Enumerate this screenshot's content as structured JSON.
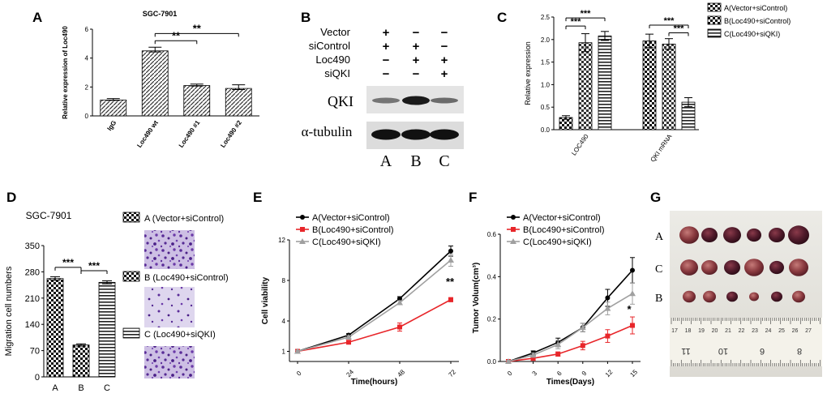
{
  "panel_labels": [
    "A",
    "B",
    "C",
    "D",
    "E",
    "F",
    "G"
  ],
  "chart_data": [
    {
      "panel": "A",
      "type": "bar",
      "title": "SGC-7901",
      "ylabel": "Relative expression of Loc490",
      "categories": [
        "IgG",
        "Loc490 wt",
        "Loc490 #1",
        "Loc490 #2"
      ],
      "values": [
        1.1,
        4.5,
        2.1,
        1.9
      ],
      "errors": [
        0.1,
        0.25,
        0.1,
        0.25
      ],
      "ylim": [
        0,
        6
      ],
      "yticks": [
        "0",
        "2",
        "4",
        "6"
      ],
      "significance": [
        "**",
        "**"
      ]
    },
    {
      "panel": "C",
      "type": "bar",
      "ylabel": "Relative expression",
      "categories": [
        "LOC490",
        "QKI mRNA"
      ],
      "series": [
        {
          "name": "A(Vector+siControl)",
          "values": [
            0.27,
            1.97
          ],
          "errors": [
            0.04,
            0.15
          ]
        },
        {
          "name": "B(Loc490+siControl)",
          "values": [
            1.93,
            1.9
          ],
          "errors": [
            0.2,
            0.12
          ]
        },
        {
          "name": "C(Loc490+siQKI)",
          "values": [
            2.08,
            0.61
          ],
          "errors": [
            0.1,
            0.1
          ]
        }
      ],
      "ylim": [
        0,
        2.5
      ],
      "yticks": [
        "0.0",
        "0.5",
        "1.0",
        "1.5",
        "2.0",
        "2.5"
      ],
      "significance": [
        "***",
        "***",
        "***",
        "***"
      ],
      "legend": "top-right"
    },
    {
      "panel": "D",
      "type": "bar",
      "title": "SGC-7901",
      "ylabel": "Migration cell numbers",
      "categories": [
        "A",
        "B",
        "C"
      ],
      "values": [
        262,
        85,
        252
      ],
      "errors": [
        5,
        3,
        4
      ],
      "ylim": [
        0,
        350
      ],
      "yticks": [
        "0",
        "70",
        "140",
        "210",
        "280",
        "350"
      ],
      "significance": [
        "***",
        "***"
      ],
      "legend": [
        "A (Vector+siControl)",
        "B (Loc490+siControl)",
        "C (Loc490+siQKI)"
      ]
    },
    {
      "panel": "E",
      "type": "line",
      "xlabel": "Time(hours)",
      "ylabel": "Cell viability",
      "x": [
        0,
        24,
        48,
        72
      ],
      "xticks": [
        "0",
        "24",
        "48",
        "72"
      ],
      "yticks": [
        "1",
        "4",
        "8",
        "12"
      ],
      "ylim": [
        0,
        12
      ],
      "series": [
        {
          "name": "A(Vector+siControl)",
          "color": "#000000",
          "values": [
            1.0,
            2.6,
            6.2,
            10.9
          ],
          "errors": [
            0.1,
            0.15,
            0.2,
            0.5
          ]
        },
        {
          "name": "B(Loc490+siControl)",
          "color": "#e8262a",
          "values": [
            1.0,
            1.9,
            3.4,
            6.1
          ],
          "errors": [
            0.1,
            0.15,
            0.4,
            0.2
          ]
        },
        {
          "name": "C(Loc490+siQKI)",
          "color": "#a0a0a0",
          "values": [
            1.0,
            2.4,
            5.8,
            10.0
          ],
          "errors": [
            0.1,
            0.15,
            0.2,
            0.6
          ]
        }
      ],
      "annotation": "**",
      "legend": "top-left"
    },
    {
      "panel": "F",
      "type": "line",
      "xlabel": "Times(Days)",
      "ylabel": "Tumor Volum(cm³)",
      "x": [
        0,
        3,
        6,
        9,
        12,
        15
      ],
      "xticks": [
        "0",
        "3",
        "6",
        "9",
        "12",
        "15"
      ],
      "yticks": [
        "0.0",
        "0.2",
        "0.4",
        "0.6"
      ],
      "ylim": [
        0,
        0.6
      ],
      "series": [
        {
          "name": "A(Vector+siControl)",
          "color": "#000000",
          "values": [
            0.0,
            0.04,
            0.09,
            0.16,
            0.3,
            0.43
          ],
          "errors": [
            0.005,
            0.01,
            0.02,
            0.02,
            0.04,
            0.06
          ]
        },
        {
          "name": "B(Loc490+siControl)",
          "color": "#e8262a",
          "values": [
            0.0,
            0.015,
            0.035,
            0.075,
            0.12,
            0.17
          ],
          "errors": [
            0.005,
            0.01,
            0.01,
            0.02,
            0.03,
            0.04
          ]
        },
        {
          "name": "C(Loc490+siQKI)",
          "color": "#a0a0a0",
          "values": [
            0.0,
            0.03,
            0.08,
            0.16,
            0.25,
            0.32
          ],
          "errors": [
            0.005,
            0.01,
            0.02,
            0.02,
            0.03,
            0.05
          ]
        }
      ],
      "annotation": "*",
      "legend": "top-left"
    }
  ],
  "western_blot": {
    "rows": [
      {
        "label": "Vector",
        "marks": [
          "+",
          "−",
          "−"
        ]
      },
      {
        "label": "siControl",
        "marks": [
          "+",
          "+",
          "−"
        ]
      },
      {
        "label": "Loc490",
        "marks": [
          "−",
          "+",
          "+"
        ]
      },
      {
        "label": "siQKI",
        "marks": [
          "−",
          "−",
          "+"
        ]
      }
    ],
    "bands": [
      "QKI",
      "α-tubulin"
    ],
    "lanes": [
      "A",
      "B",
      "C"
    ]
  },
  "tumor_photo": {
    "row_labels": [
      "A",
      "C",
      "B"
    ],
    "ruler_numbers": [
      "17",
      "18",
      "19",
      "20",
      "21",
      "22",
      "23",
      "24",
      "25",
      "26",
      "27"
    ],
    "ruler_lower_numbers": [
      "11",
      "10",
      "6",
      "8"
    ]
  }
}
